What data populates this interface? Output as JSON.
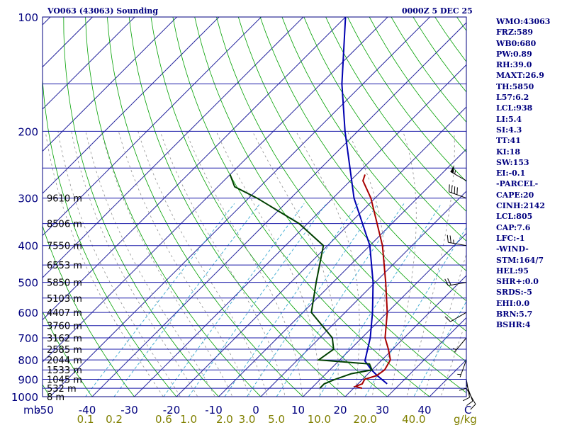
{
  "header": {
    "title": "VO063 (43063) Sounding",
    "datetime": "0000Z  5 DEC 25"
  },
  "indices": [
    "WMO:43063",
    "FRZ:589",
    "WB0:680",
    "PW:0.89",
    "RH:39.0",
    "MAXT:26.9",
    "TH:5850",
    "L57:6.2",
    "LCL:938",
    "LI:5.4",
    "SI:4.3",
    "TT:41",
    "KI:18",
    "SW:153",
    "EI:-0.1",
    "-PARCEL-",
    "CAPE:20",
    "CINH:2142",
    "LCL:805",
    "CAP:7.6",
    "LFC:-1",
    "-WIND-",
    "STM:164/7",
    "HEL:95",
    "SHR+:0.0",
    "SRDS:-5",
    "EHI:0.0",
    "BRN:5.7",
    "BSHR:4"
  ],
  "colors": {
    "frame": "#00007f",
    "isobar": "#1a1aa8",
    "isotherm": "#2a2aa0",
    "dry_adiabat": "#00a000",
    "moist_adiabat": "#909090",
    "mixing_ratio": "#38a8d0",
    "temperature": "#a80000",
    "dewpoint": "#004000",
    "parcel": "#0000b0",
    "wind": "#000000",
    "mix_label": "#808000"
  },
  "chart_data": {
    "type": "skew-t",
    "y_axis_label": "mb",
    "x_axis_unit": "C",
    "pressure_ticks": [
      100,
      200,
      300,
      400,
      500,
      600,
      700,
      800,
      900,
      1000
    ],
    "temperature_ticks": [
      -50,
      -40,
      -30,
      -20,
      -10,
      0,
      10,
      20,
      30,
      40
    ],
    "mixing_ratio_labels": [
      "0.1",
      "0.2",
      "0.6",
      "1.0",
      "2.0",
      "3.0",
      "5.0",
      "10.0",
      "20.0",
      "40.0"
    ],
    "mixing_ratio_unit": "g/kg",
    "height_labels": [
      {
        "p": 300,
        "text": "9610 m"
      },
      {
        "p": 350,
        "text": "8506 m"
      },
      {
        "p": 400,
        "text": "7550 m"
      },
      {
        "p": 450,
        "text": "6553 m"
      },
      {
        "p": 500,
        "text": "5850 m"
      },
      {
        "p": 550,
        "text": "5103 m"
      },
      {
        "p": 600,
        "text": "4407 m"
      },
      {
        "p": 650,
        "text": "3760 m"
      },
      {
        "p": 700,
        "text": "3162 m"
      },
      {
        "p": 750,
        "text": "2585 m"
      },
      {
        "p": 800,
        "text": "2044 m"
      },
      {
        "p": 850,
        "text": "1533 m"
      },
      {
        "p": 900,
        "text": "1045 m"
      },
      {
        "p": 950,
        "text": "532 m"
      },
      {
        "p": 1000,
        "text": "8 m"
      }
    ],
    "temperature_profile": [
      [
        950,
        22
      ],
      [
        940,
        20
      ],
      [
        925,
        21
      ],
      [
        900,
        20.5
      ],
      [
        880,
        22.5
      ],
      [
        850,
        23
      ],
      [
        800,
        22
      ],
      [
        750,
        19
      ],
      [
        700,
        15.5
      ],
      [
        600,
        10
      ],
      [
        500,
        2.5
      ],
      [
        400,
        -7
      ],
      [
        300,
        -21
      ],
      [
        270,
        -27
      ],
      [
        260,
        -28
      ]
    ],
    "dewpoint_profile": [
      [
        950,
        12
      ],
      [
        925,
        12
      ],
      [
        900,
        13.5
      ],
      [
        870,
        16
      ],
      [
        850,
        20
      ],
      [
        820,
        18
      ],
      [
        800,
        5
      ],
      [
        750,
        6
      ],
      [
        700,
        3
      ],
      [
        600,
        -8
      ],
      [
        500,
        -14
      ],
      [
        400,
        -21
      ],
      [
        350,
        -32
      ],
      [
        300,
        -48
      ],
      [
        280,
        -56
      ],
      [
        260,
        -60
      ]
    ],
    "parcel_profile": [
      [
        925,
        26.9
      ],
      [
        880,
        22.6
      ],
      [
        850,
        19.9
      ],
      [
        805,
        16.2
      ],
      [
        700,
        12.0
      ],
      [
        600,
        6.5
      ],
      [
        500,
        -0.5
      ],
      [
        400,
        -10
      ],
      [
        300,
        -25
      ],
      [
        200,
        -43
      ],
      [
        150,
        -55
      ],
      [
        100,
        -70
      ]
    ],
    "wind_barbs": [
      {
        "p": 950,
        "dir": 150,
        "spd": 10
      },
      {
        "p": 925,
        "dir": 160,
        "spd": 10
      },
      {
        "p": 900,
        "dir": 170,
        "spd": 10
      },
      {
        "p": 850,
        "dir": 180,
        "spd": 10
      },
      {
        "p": 800,
        "dir": 200,
        "spd": 5
      },
      {
        "p": 700,
        "dir": 220,
        "spd": 5
      },
      {
        "p": 600,
        "dir": 240,
        "spd": 10
      },
      {
        "p": 500,
        "dir": 260,
        "spd": 20
      },
      {
        "p": 400,
        "dir": 280,
        "spd": 25
      },
      {
        "p": 300,
        "dir": 290,
        "spd": 40
      },
      {
        "p": 270,
        "dir": 300,
        "spd": 55
      }
    ]
  }
}
